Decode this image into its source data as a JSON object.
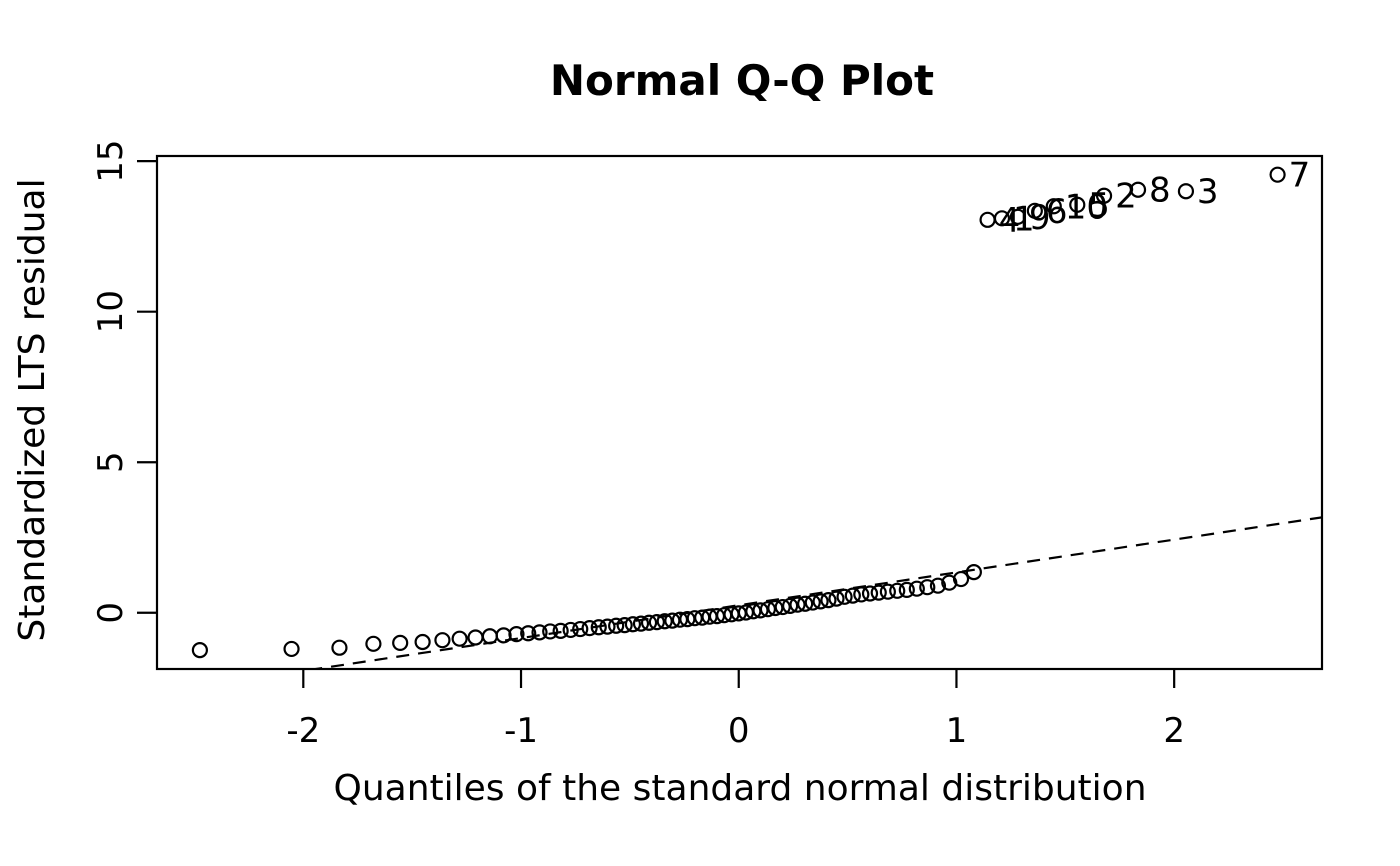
{
  "title": "Normal Q-Q Plot",
  "chart_data": {
    "type": "scatter",
    "title": "Normal Q-Q Plot",
    "xlabel": "Quantiles of the standard normal distribution",
    "ylabel": "Standardized LTS residual",
    "xlim": [
      -2.672,
      2.679
    ],
    "ylim": [
      -1.867,
      15.17
    ],
    "xticks": [
      -2,
      -1,
      0,
      1,
      2
    ],
    "yticks": [
      0,
      5,
      10,
      15
    ],
    "grid": false,
    "legend": null,
    "marker": "open-circle",
    "colors": {
      "points": "#000000",
      "line": "#000000",
      "background": "#ffffff"
    },
    "reference_line": {
      "style": "dashed",
      "slope": 1.09,
      "intercept": 0.25
    },
    "points": [
      {
        "x": -2.475,
        "y": -1.24,
        "label": ""
      },
      {
        "x": -2.054,
        "y": -1.2,
        "label": ""
      },
      {
        "x": -1.834,
        "y": -1.16,
        "label": ""
      },
      {
        "x": -1.678,
        "y": -1.03,
        "label": ""
      },
      {
        "x": -1.555,
        "y": -1.0,
        "label": ""
      },
      {
        "x": -1.452,
        "y": -0.97,
        "label": ""
      },
      {
        "x": -1.361,
        "y": -0.91,
        "label": ""
      },
      {
        "x": -1.282,
        "y": -0.86,
        "label": ""
      },
      {
        "x": -1.209,
        "y": -0.82,
        "label": ""
      },
      {
        "x": -1.143,
        "y": -0.78,
        "label": ""
      },
      {
        "x": -1.08,
        "y": -0.75,
        "label": ""
      },
      {
        "x": -1.021,
        "y": -0.71,
        "label": ""
      },
      {
        "x": -0.967,
        "y": -0.68,
        "label": ""
      },
      {
        "x": -0.915,
        "y": -0.65,
        "label": ""
      },
      {
        "x": -0.866,
        "y": -0.62,
        "label": ""
      },
      {
        "x": -0.818,
        "y": -0.6,
        "label": ""
      },
      {
        "x": -0.772,
        "y": -0.57,
        "label": ""
      },
      {
        "x": -0.728,
        "y": -0.54,
        "label": ""
      },
      {
        "x": -0.685,
        "y": -0.51,
        "label": ""
      },
      {
        "x": -0.643,
        "y": -0.48,
        "label": ""
      },
      {
        "x": -0.603,
        "y": -0.46,
        "label": ""
      },
      {
        "x": -0.563,
        "y": -0.43,
        "label": ""
      },
      {
        "x": -0.524,
        "y": -0.41,
        "label": ""
      },
      {
        "x": -0.486,
        "y": -0.38,
        "label": ""
      },
      {
        "x": -0.449,
        "y": -0.36,
        "label": ""
      },
      {
        "x": -0.412,
        "y": -0.33,
        "label": ""
      },
      {
        "x": -0.376,
        "y": -0.31,
        "label": ""
      },
      {
        "x": -0.34,
        "y": -0.28,
        "label": ""
      },
      {
        "x": -0.305,
        "y": -0.26,
        "label": ""
      },
      {
        "x": -0.27,
        "y": -0.23,
        "label": ""
      },
      {
        "x": -0.236,
        "y": -0.21,
        "label": ""
      },
      {
        "x": -0.202,
        "y": -0.18,
        "label": ""
      },
      {
        "x": -0.168,
        "y": -0.16,
        "label": ""
      },
      {
        "x": -0.134,
        "y": -0.13,
        "label": ""
      },
      {
        "x": -0.1,
        "y": -0.11,
        "label": ""
      },
      {
        "x": -0.067,
        "y": -0.08,
        "label": ""
      },
      {
        "x": -0.033,
        "y": -0.05,
        "label": ""
      },
      {
        "x": 0.0,
        "y": -0.02,
        "label": ""
      },
      {
        "x": 0.033,
        "y": 0.01,
        "label": ""
      },
      {
        "x": 0.067,
        "y": 0.05,
        "label": ""
      },
      {
        "x": 0.1,
        "y": 0.08,
        "label": ""
      },
      {
        "x": 0.134,
        "y": 0.12,
        "label": ""
      },
      {
        "x": 0.168,
        "y": 0.16,
        "label": ""
      },
      {
        "x": 0.202,
        "y": 0.19,
        "label": ""
      },
      {
        "x": 0.236,
        "y": 0.23,
        "label": ""
      },
      {
        "x": 0.27,
        "y": 0.27,
        "label": ""
      },
      {
        "x": 0.305,
        "y": 0.3,
        "label": ""
      },
      {
        "x": 0.34,
        "y": 0.34,
        "label": ""
      },
      {
        "x": 0.376,
        "y": 0.38,
        "label": ""
      },
      {
        "x": 0.412,
        "y": 0.42,
        "label": ""
      },
      {
        "x": 0.449,
        "y": 0.47,
        "label": ""
      },
      {
        "x": 0.486,
        "y": 0.53,
        "label": ""
      },
      {
        "x": 0.524,
        "y": 0.57,
        "label": ""
      },
      {
        "x": 0.563,
        "y": 0.61,
        "label": ""
      },
      {
        "x": 0.603,
        "y": 0.64,
        "label": ""
      },
      {
        "x": 0.643,
        "y": 0.67,
        "label": ""
      },
      {
        "x": 0.685,
        "y": 0.7,
        "label": ""
      },
      {
        "x": 0.728,
        "y": 0.73,
        "label": ""
      },
      {
        "x": 0.772,
        "y": 0.76,
        "label": ""
      },
      {
        "x": 0.818,
        "y": 0.8,
        "label": ""
      },
      {
        "x": 0.866,
        "y": 0.85,
        "label": ""
      },
      {
        "x": 0.915,
        "y": 0.9,
        "label": ""
      },
      {
        "x": 0.967,
        "y": 1.0,
        "label": ""
      },
      {
        "x": 1.021,
        "y": 1.12,
        "label": ""
      },
      {
        "x": 1.08,
        "y": 1.35,
        "label": ""
      },
      {
        "x": 1.143,
        "y": 13.05,
        "label": "4"
      },
      {
        "x": 1.209,
        "y": 13.1,
        "label": "1"
      },
      {
        "x": 1.282,
        "y": 13.15,
        "label": "9"
      },
      {
        "x": 1.36,
        "y": 13.35,
        "label": "6"
      },
      {
        "x": 1.447,
        "y": 13.5,
        "label": "10"
      },
      {
        "x": 1.555,
        "y": 13.55,
        "label": "5"
      },
      {
        "x": 1.678,
        "y": 13.85,
        "label": "2"
      },
      {
        "x": 1.834,
        "y": 14.05,
        "label": "8"
      },
      {
        "x": 2.054,
        "y": 14.0,
        "label": "3"
      },
      {
        "x": 2.475,
        "y": 14.55,
        "label": "7"
      }
    ]
  }
}
